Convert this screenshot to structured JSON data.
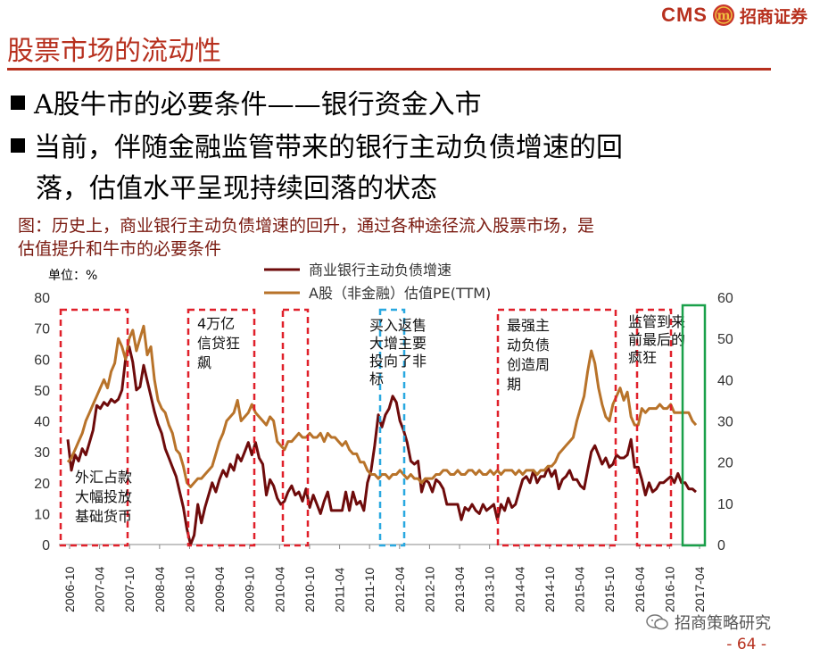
{
  "header": {
    "logo_text": "CMS",
    "logo_cn": "招商证券",
    "badge": "m"
  },
  "page_title": "股票市场的流动性",
  "bullets": [
    "A股牛市的必要条件——银行资金入市",
    "当前，伴随金融监管带来的银行主动负债增速的回",
    "落，估值水平呈现持续回落的状态"
  ],
  "caption": [
    "图：历史上，商业银行主动负债增速的回升，通过各种途径流入股票市场，是",
    "估值提升和牛市的必要条件"
  ],
  "unit_label": "单位：%",
  "footer": {
    "watermark": "招商策略研究",
    "page_number": "- 64 -"
  },
  "colors": {
    "accent": "#b7301e",
    "series_debt": "#6e0b0b",
    "series_pe": "#b8732a",
    "box_red": "#e0202a",
    "box_blue": "#29a8e0",
    "box_green": "#1aa04a"
  },
  "chart_data": {
    "type": "line",
    "xlabel": "",
    "ylabel": "",
    "x_ticks": [
      "2006-10",
      "2007-04",
      "2007-10",
      "2008-04",
      "2008-10",
      "2009-04",
      "2009-10",
      "2010-04",
      "2010-10",
      "2011-04",
      "2011-10",
      "2012-04",
      "2012-10",
      "2013-04",
      "2013-10",
      "2014-04",
      "2014-10",
      "2015-04",
      "2015-10",
      "2016-04",
      "2016-10",
      "2017-04"
    ],
    "y_left_ticks": [
      "0",
      "10",
      "20",
      "30",
      "40",
      "50",
      "60",
      "70",
      "80"
    ],
    "y_right_ticks": [
      "0",
      "10",
      "20",
      "30",
      "40",
      "50",
      "60"
    ],
    "ylim_left": [
      0,
      80
    ],
    "ylim_right": [
      0,
      60
    ],
    "legend_position": "top-center",
    "series": [
      {
        "name": "商业银行主动负债增速",
        "axis": "left",
        "values": [
          34,
          24,
          29,
          27,
          31,
          29,
          33,
          37,
          45,
          44,
          46,
          45,
          47,
          46,
          47,
          50,
          60,
          64,
          59,
          50,
          51,
          58,
          53,
          48,
          43,
          39,
          36,
          31,
          28,
          25,
          22,
          17,
          12,
          5,
          0,
          3,
          13,
          7,
          12,
          16,
          20,
          17,
          21,
          24,
          22,
          26,
          24,
          29,
          27,
          30,
          33,
          29,
          33,
          28,
          26,
          16,
          21,
          19,
          15,
          13,
          14,
          17,
          19,
          16,
          17,
          14,
          18,
          12,
          16,
          13,
          10,
          14,
          17,
          11,
          11,
          11,
          11,
          17,
          11,
          17,
          13,
          14,
          11,
          20,
          24,
          32,
          42,
          38,
          42,
          44,
          48,
          46,
          40,
          37,
          33,
          27,
          26,
          27,
          17,
          21,
          20,
          17,
          21,
          20,
          18,
          13,
          13,
          13,
          13,
          8,
          12,
          11,
          13,
          11,
          10,
          13,
          11,
          12,
          13,
          8,
          13,
          11,
          15,
          12,
          13,
          17,
          21,
          22,
          20,
          24,
          20,
          22,
          22,
          25,
          22,
          24,
          18,
          21,
          22,
          24,
          21,
          21,
          19,
          18,
          24,
          30,
          32,
          29,
          26,
          28,
          25,
          26,
          29,
          28,
          28,
          29,
          34,
          25,
          25,
          21,
          16,
          20,
          17,
          18,
          20,
          20,
          21,
          22,
          20,
          23,
          20,
          20,
          18,
          18,
          17
        ]
      },
      {
        "name": "A股（非金融）估值PE(TTM)",
        "axis": "right",
        "values": [
          20,
          21,
          23,
          25,
          27,
          30,
          32,
          34,
          36,
          38,
          40,
          38,
          42,
          44,
          50,
          48,
          45,
          50,
          52,
          47,
          50,
          53,
          46,
          48,
          40,
          35,
          33,
          32,
          29,
          27,
          23,
          22,
          19,
          15,
          14,
          15,
          16,
          16,
          17,
          18,
          19,
          22,
          25,
          27,
          30,
          31,
          32,
          35,
          30,
          31,
          32,
          34,
          32,
          31,
          30,
          29,
          31,
          30,
          25,
          24,
          23,
          25,
          25,
          26,
          27,
          26,
          26,
          27,
          26,
          26,
          27,
          25,
          27,
          26,
          26,
          25,
          24,
          25,
          23,
          22,
          22,
          20,
          20,
          18,
          17,
          17,
          16,
          17,
          17,
          16,
          17,
          17,
          18,
          17,
          16,
          17,
          16,
          16,
          15,
          16,
          16,
          16,
          17,
          17,
          18,
          18,
          17,
          17,
          18,
          17,
          17,
          18,
          18,
          17,
          18,
          17,
          17,
          18,
          17,
          18,
          17,
          18,
          18,
          18,
          17,
          18,
          17,
          18,
          18,
          18,
          17,
          18,
          18,
          19,
          19,
          20,
          22,
          23,
          24,
          25,
          26,
          30,
          33,
          36,
          42,
          47,
          44,
          38,
          34,
          31,
          30,
          34,
          36,
          38,
          35,
          37,
          31,
          29,
          29,
          33,
          32,
          33,
          33,
          33,
          34,
          33,
          33,
          34,
          32,
          32,
          32,
          32,
          32,
          30,
          29
        ]
      }
    ],
    "boxes": [
      {
        "color": "red",
        "label": "外汇占款大幅投放基础货币"
      },
      {
        "color": "red",
        "label": "4万亿信贷狂飙"
      },
      {
        "color": "red",
        "label": ""
      },
      {
        "color": "blue",
        "label": "买入返售大增主要投向了非标"
      },
      {
        "color": "red",
        "label": "最强主动负债创造周期"
      },
      {
        "color": "red",
        "label": "监管到来前最后的疯狂"
      },
      {
        "color": "green",
        "label": ""
      }
    ]
  }
}
